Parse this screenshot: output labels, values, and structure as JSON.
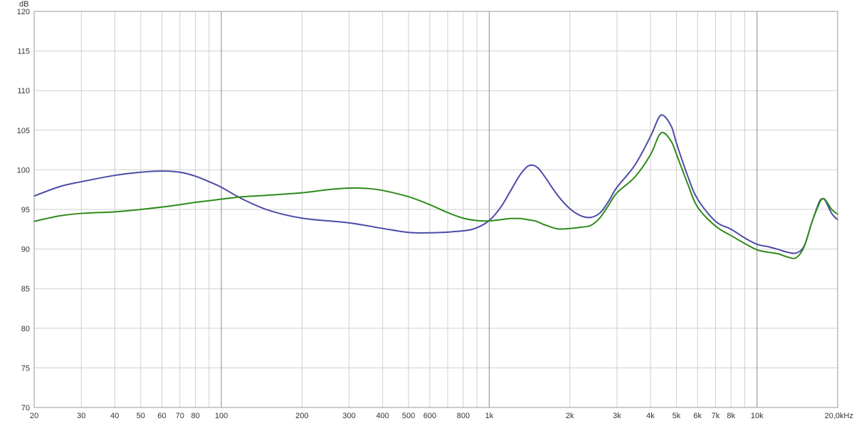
{
  "chart_data": {
    "type": "line",
    "title": "",
    "xlabel": "",
    "ylabel": "",
    "y_unit_label": "dB",
    "x_scale": "log",
    "xlim": [
      20,
      20000
    ],
    "ylim": [
      70,
      120
    ],
    "grid": true,
    "legend": "none",
    "y_ticks": [
      70,
      75,
      80,
      85,
      90,
      95,
      100,
      105,
      110,
      115,
      120
    ],
    "x_ticks": [
      {
        "value": 20,
        "label": "20"
      },
      {
        "value": 30,
        "label": "30"
      },
      {
        "value": 40,
        "label": "40"
      },
      {
        "value": 50,
        "label": "50"
      },
      {
        "value": 60,
        "label": "60"
      },
      {
        "value": 70,
        "label": "70"
      },
      {
        "value": 80,
        "label": "80"
      },
      {
        "value": 100,
        "label": "100"
      },
      {
        "value": 200,
        "label": "200"
      },
      {
        "value": 300,
        "label": "300"
      },
      {
        "value": 400,
        "label": "400"
      },
      {
        "value": 500,
        "label": "500"
      },
      {
        "value": 600,
        "label": "600"
      },
      {
        "value": 800,
        "label": "800"
      },
      {
        "value": 1000,
        "label": "1k"
      },
      {
        "value": 2000,
        "label": "2k"
      },
      {
        "value": 3000,
        "label": "3k"
      },
      {
        "value": 4000,
        "label": "4k"
      },
      {
        "value": 5000,
        "label": "5k"
      },
      {
        "value": 6000,
        "label": "6k"
      },
      {
        "value": 7000,
        "label": "7k"
      },
      {
        "value": 8000,
        "label": "8k"
      },
      {
        "value": 10000,
        "label": "10k"
      },
      {
        "value": 20000,
        "label": "20,0kHz"
      }
    ],
    "minor_x_grid": [
      90,
      700,
      900,
      9000
    ],
    "major_x_grid": [
      100,
      1000,
      10000
    ],
    "series": [
      {
        "color": "#4b4ba8",
        "points": [
          [
            20,
            96.7
          ],
          [
            25,
            97.9
          ],
          [
            30,
            98.5
          ],
          [
            40,
            99.3
          ],
          [
            50,
            99.7
          ],
          [
            60,
            99.85
          ],
          [
            70,
            99.7
          ],
          [
            80,
            99.2
          ],
          [
            90,
            98.5
          ],
          [
            100,
            97.8
          ],
          [
            120,
            96.3
          ],
          [
            150,
            94.9
          ],
          [
            200,
            93.9
          ],
          [
            300,
            93.3
          ],
          [
            400,
            92.6
          ],
          [
            500,
            92.1
          ],
          [
            600,
            92.05
          ],
          [
            800,
            92.3
          ],
          [
            900,
            92.7
          ],
          [
            1000,
            93.6
          ],
          [
            1100,
            95.2
          ],
          [
            1200,
            97.3
          ],
          [
            1300,
            99.3
          ],
          [
            1400,
            100.5
          ],
          [
            1500,
            100.4
          ],
          [
            1600,
            99.3
          ],
          [
            1800,
            96.8
          ],
          [
            2000,
            95.1
          ],
          [
            2200,
            94.2
          ],
          [
            2400,
            94.0
          ],
          [
            2600,
            94.6
          ],
          [
            2800,
            96.1
          ],
          [
            3000,
            97.8
          ],
          [
            3500,
            100.6
          ],
          [
            4000,
            104.2
          ],
          [
            4300,
            106.6
          ],
          [
            4500,
            106.8
          ],
          [
            4800,
            105.4
          ],
          [
            5000,
            103.4
          ],
          [
            5500,
            99.3
          ],
          [
            6000,
            96.3
          ],
          [
            7000,
            93.5
          ],
          [
            8000,
            92.5
          ],
          [
            9000,
            91.4
          ],
          [
            10000,
            90.6
          ],
          [
            11000,
            90.3
          ],
          [
            12000,
            89.95
          ],
          [
            13000,
            89.6
          ],
          [
            14000,
            89.5
          ],
          [
            15000,
            90.4
          ],
          [
            16000,
            93.3
          ],
          [
            17000,
            95.8
          ],
          [
            17500,
            96.35
          ],
          [
            18000,
            96.1
          ],
          [
            19000,
            94.5
          ],
          [
            20000,
            93.7
          ]
        ]
      },
      {
        "color": "#2e8b1a",
        "points": [
          [
            20,
            93.5
          ],
          [
            25,
            94.2
          ],
          [
            30,
            94.5
          ],
          [
            40,
            94.7
          ],
          [
            50,
            95.0
          ],
          [
            60,
            95.3
          ],
          [
            70,
            95.6
          ],
          [
            80,
            95.9
          ],
          [
            90,
            96.1
          ],
          [
            100,
            96.3
          ],
          [
            120,
            96.6
          ],
          [
            150,
            96.8
          ],
          [
            200,
            97.1
          ],
          [
            250,
            97.5
          ],
          [
            300,
            97.7
          ],
          [
            350,
            97.65
          ],
          [
            400,
            97.4
          ],
          [
            500,
            96.6
          ],
          [
            600,
            95.6
          ],
          [
            700,
            94.6
          ],
          [
            800,
            93.9
          ],
          [
            900,
            93.6
          ],
          [
            1000,
            93.55
          ],
          [
            1100,
            93.7
          ],
          [
            1200,
            93.85
          ],
          [
            1300,
            93.85
          ],
          [
            1400,
            93.7
          ],
          [
            1500,
            93.5
          ],
          [
            1600,
            93.1
          ],
          [
            1800,
            92.55
          ],
          [
            2000,
            92.6
          ],
          [
            2200,
            92.75
          ],
          [
            2400,
            93.0
          ],
          [
            2600,
            94.0
          ],
          [
            2800,
            95.6
          ],
          [
            3000,
            97.1
          ],
          [
            3500,
            99.1
          ],
          [
            4000,
            101.9
          ],
          [
            4300,
            104.3
          ],
          [
            4500,
            104.65
          ],
          [
            4800,
            103.5
          ],
          [
            5000,
            102.0
          ],
          [
            5500,
            98.3
          ],
          [
            6000,
            95.3
          ],
          [
            7000,
            92.9
          ],
          [
            8000,
            91.7
          ],
          [
            9000,
            90.7
          ],
          [
            10000,
            89.9
          ],
          [
            11000,
            89.6
          ],
          [
            12000,
            89.4
          ],
          [
            13000,
            89.0
          ],
          [
            14000,
            88.9
          ],
          [
            15000,
            90.3
          ],
          [
            16000,
            93.3
          ],
          [
            17000,
            95.6
          ],
          [
            17500,
            96.3
          ],
          [
            18000,
            96.2
          ],
          [
            19000,
            95.0
          ],
          [
            20000,
            94.4
          ]
        ]
      }
    ]
  }
}
